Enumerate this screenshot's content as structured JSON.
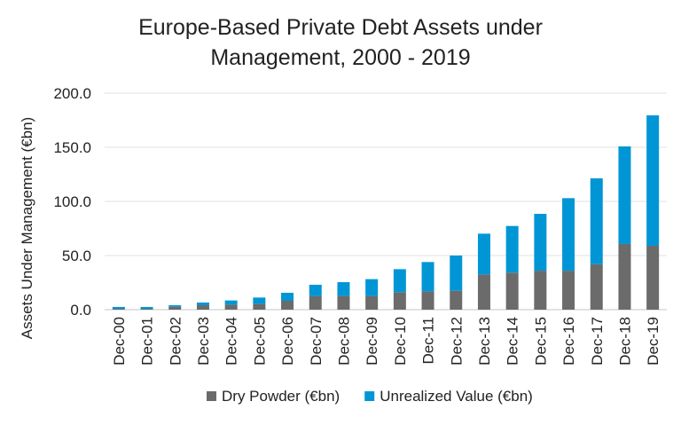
{
  "chart_data": {
    "type": "bar",
    "stacked": true,
    "title_line1": "Europe-Based Private Debt Assets under",
    "title_line2": "Management, 2000 - 2019",
    "xlabel": "",
    "ylabel": "Assets Under Management (€bn)",
    "ylim": [
      0,
      200
    ],
    "yticks": [
      "0.0",
      "50.0",
      "100.0",
      "150.0",
      "200.0"
    ],
    "grid": true,
    "legend_position": "bottom",
    "categories": [
      "Dec-00",
      "Dec-01",
      "Dec-02",
      "Dec-03",
      "Dec-04",
      "Dec-05",
      "Dec-06",
      "Dec-07",
      "Dec-08",
      "Dec-09",
      "Dec-10",
      "Dec-11",
      "Dec-12",
      "Dec-13",
      "Dec-14",
      "Dec-15",
      "Dec-16",
      "Dec-17",
      "Dec-18",
      "Dec-19"
    ],
    "series": [
      {
        "name": "Dry Powder (€bn)",
        "color": "#6b6b6b",
        "values": [
          0.8,
          0.8,
          2.7,
          4.1,
          4.6,
          5.2,
          8.2,
          12.6,
          12.6,
          12.6,
          16.2,
          16.9,
          17.5,
          32.5,
          34.2,
          36.0,
          36.0,
          42.0,
          60.7,
          59.0
        ]
      },
      {
        "name": "Unrealized Value (€bn)",
        "color": "#0096d6",
        "values": [
          1.7,
          1.7,
          1.4,
          2.5,
          3.9,
          6.0,
          7.4,
          10.4,
          12.8,
          15.6,
          21.2,
          27.1,
          32.5,
          37.7,
          43.1,
          52.5,
          67.0,
          79.3,
          90.1,
          120.5
        ]
      }
    ]
  }
}
